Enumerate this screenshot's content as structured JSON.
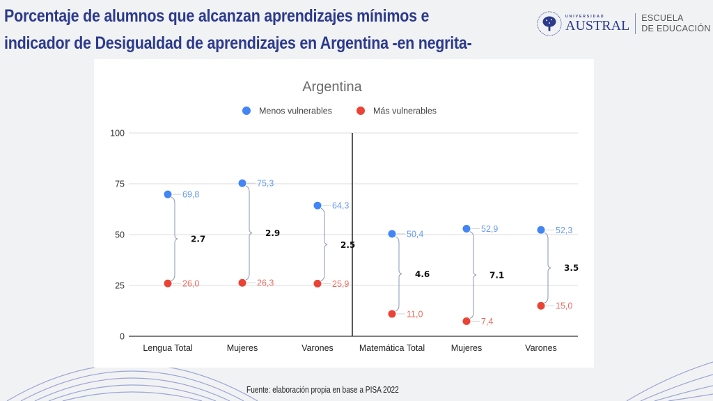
{
  "slide": {
    "title_line1": "Porcentaje de alumnos que alcanzan aprendizajes mínimos e",
    "title_line2": "indicador de Desigualdad de aprendizajes en Argentina -en negrita-",
    "source": "Fuente: elaboración propia en base a PISA 2022"
  },
  "logo": {
    "university_small": "UNIVERSIDAD",
    "university_name": "AUSTRAL",
    "school_line1": "ESCUELA",
    "school_line2": "DE EDUCACIÓN"
  },
  "colors": {
    "title": "#2c3a8c",
    "menos": "#4285f4",
    "mas": "#ea4335",
    "menos_label": "#6b9cf0",
    "mas_label": "#ee6b60",
    "brace": "#8a95b8"
  },
  "chart_data": {
    "type": "scatter",
    "title": "Argentina",
    "xlabel": "",
    "ylabel": "",
    "ylim": [
      0,
      100
    ],
    "yticks": [
      0,
      25,
      50,
      75,
      100
    ],
    "grid": true,
    "legend_position": "top-center",
    "categories": [
      "Lengua Total",
      "Mujeres",
      "Varones",
      "Matemática Total",
      "Mujeres",
      "Varones"
    ],
    "divider_after_category": 2,
    "series": [
      {
        "name": "Menos vulnerables",
        "values": [
          69.8,
          75.3,
          64.3,
          50.4,
          52.9,
          52.3
        ],
        "labels": [
          "69,8",
          "75,3",
          "64,3",
          "50,4",
          "52,9",
          "52,3"
        ]
      },
      {
        "name": "Más vulnerables",
        "values": [
          26.0,
          26.3,
          25.9,
          11.0,
          7.4,
          15.0
        ],
        "labels": [
          "26,0",
          "26,3",
          "25,9",
          "11,0",
          "7,4",
          "15,0"
        ]
      }
    ],
    "annotations": {
      "name": "Desigualdad de aprendizajes",
      "values": [
        "2.7",
        "2.9",
        "2.5",
        "4.6",
        "7.1",
        "3.5"
      ]
    }
  }
}
